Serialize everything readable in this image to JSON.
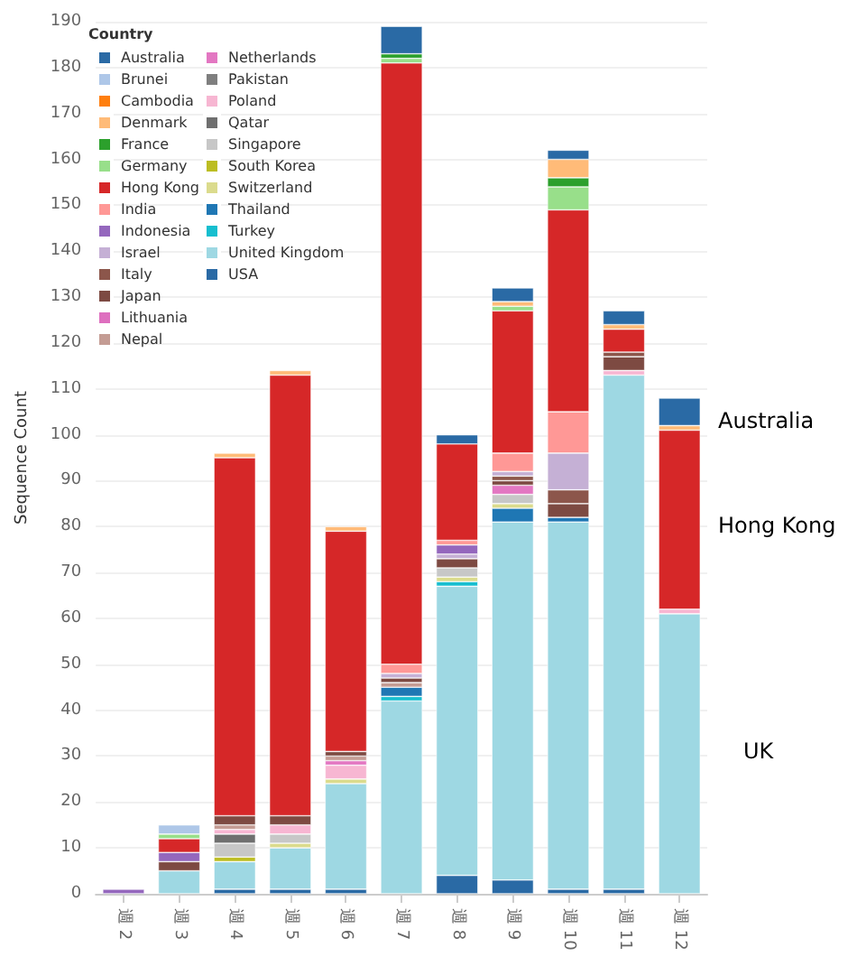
{
  "chart_data": {
    "type": "bar",
    "stacked": true,
    "ylabel": "Sequence Count",
    "legend_title": "Country",
    "legend": "top left",
    "grid": "y",
    "categories": [
      "週 2",
      "週 3",
      "週 4",
      "週 5",
      "週 6",
      "週 7",
      "週 8",
      "週 9",
      "週 10",
      "週 11",
      "週 12"
    ],
    "ylim": [
      0,
      190
    ],
    "yticks": [
      0,
      10,
      20,
      30,
      40,
      50,
      60,
      70,
      80,
      90,
      100,
      110,
      120,
      130,
      140,
      150,
      160,
      170,
      180,
      190
    ],
    "series": [
      {
        "name": "USA",
        "color": "#2a6aa5",
        "values": [
          null,
          null,
          1,
          1,
          1,
          null,
          4,
          3,
          1,
          1,
          null
        ]
      },
      {
        "name": "United Kingdom",
        "color": "#9ed8e3",
        "values": [
          null,
          5,
          6,
          9,
          23,
          42,
          63,
          78,
          80,
          112,
          61
        ]
      },
      {
        "name": "Turkey",
        "color": "#17becf",
        "values": [
          null,
          null,
          null,
          null,
          null,
          1,
          1,
          null,
          null,
          null,
          null
        ]
      },
      {
        "name": "Thailand",
        "color": "#1f77b4",
        "values": [
          null,
          null,
          null,
          null,
          null,
          2,
          null,
          3,
          1,
          null,
          null
        ]
      },
      {
        "name": "Switzerland",
        "color": "#dbdb8d",
        "values": [
          null,
          null,
          null,
          1,
          1,
          null,
          1,
          1,
          null,
          null,
          null
        ]
      },
      {
        "name": "South Korea",
        "color": "#bcbd22",
        "values": [
          null,
          null,
          1,
          null,
          null,
          null,
          null,
          null,
          null,
          null,
          null
        ]
      },
      {
        "name": "Singapore",
        "color": "#c7c7c7",
        "values": [
          null,
          null,
          3,
          2,
          null,
          null,
          2,
          2,
          null,
          null,
          null
        ]
      },
      {
        "name": "Qatar",
        "color": "#6f6f6f",
        "values": [
          null,
          null,
          2,
          null,
          null,
          null,
          null,
          null,
          null,
          null,
          null
        ]
      },
      {
        "name": "Poland",
        "color": "#f7b6d2",
        "values": [
          null,
          null,
          1,
          2,
          3,
          null,
          null,
          null,
          null,
          1,
          1
        ]
      },
      {
        "name": "Pakistan",
        "color": "#7f7f7f",
        "values": [
          null,
          null,
          null,
          null,
          null,
          null,
          null,
          null,
          null,
          null,
          null
        ]
      },
      {
        "name": "Netherlands",
        "color": "#e377c2",
        "values": [
          null,
          null,
          null,
          null,
          1,
          null,
          null,
          2,
          null,
          null,
          null
        ]
      },
      {
        "name": "Nepal",
        "color": "#c49c94",
        "values": [
          null,
          null,
          1,
          null,
          1,
          1,
          null,
          null,
          null,
          null,
          null
        ]
      },
      {
        "name": "Lithuania",
        "color": "#de6fbf",
        "values": [
          null,
          null,
          null,
          null,
          null,
          null,
          null,
          null,
          null,
          null,
          null
        ]
      },
      {
        "name": "Japan",
        "color": "#7d4a42",
        "values": [
          null,
          2,
          2,
          2,
          1,
          1,
          2,
          1,
          3,
          3,
          null
        ]
      },
      {
        "name": "Italy",
        "color": "#8c564b",
        "values": [
          null,
          null,
          null,
          null,
          null,
          null,
          null,
          1,
          3,
          1,
          null
        ]
      },
      {
        "name": "Israel",
        "color": "#c5b0d5",
        "values": [
          null,
          null,
          null,
          null,
          null,
          1,
          1,
          1,
          8,
          null,
          null
        ]
      },
      {
        "name": "Indonesia",
        "color": "#9467bd",
        "values": [
          1,
          2,
          null,
          null,
          null,
          null,
          2,
          null,
          null,
          null,
          null
        ]
      },
      {
        "name": "India",
        "color": "#ff9896",
        "values": [
          null,
          null,
          null,
          null,
          null,
          2,
          1,
          4,
          9,
          null,
          null
        ]
      },
      {
        "name": "Hong Kong",
        "color": "#d62728",
        "values": [
          null,
          3,
          78,
          96,
          48,
          131,
          21,
          31,
          44,
          5,
          39
        ]
      },
      {
        "name": "Germany",
        "color": "#98df8a",
        "values": [
          null,
          1,
          null,
          null,
          null,
          1,
          null,
          1,
          5,
          null,
          null
        ]
      },
      {
        "name": "France",
        "color": "#2ca02c",
        "values": [
          null,
          null,
          null,
          null,
          null,
          1,
          null,
          null,
          2,
          null,
          null
        ]
      },
      {
        "name": "Denmark",
        "color": "#ffbb78",
        "values": [
          null,
          null,
          1,
          1,
          1,
          null,
          null,
          1,
          4,
          1,
          1
        ]
      },
      {
        "name": "Cambodia",
        "color": "#ff7f0e",
        "values": [
          null,
          null,
          null,
          null,
          null,
          null,
          null,
          null,
          null,
          null,
          null
        ]
      },
      {
        "name": "Brunei",
        "color": "#aec7e8",
        "values": [
          null,
          2,
          null,
          null,
          null,
          null,
          null,
          null,
          null,
          null,
          null
        ]
      },
      {
        "name": "Australia",
        "color": "#2a6aa5",
        "values": [
          null,
          null,
          null,
          null,
          null,
          6,
          2,
          3,
          2,
          3,
          6
        ]
      }
    ],
    "annotations": [
      "Australia",
      "Hong Kong",
      "UK"
    ]
  }
}
